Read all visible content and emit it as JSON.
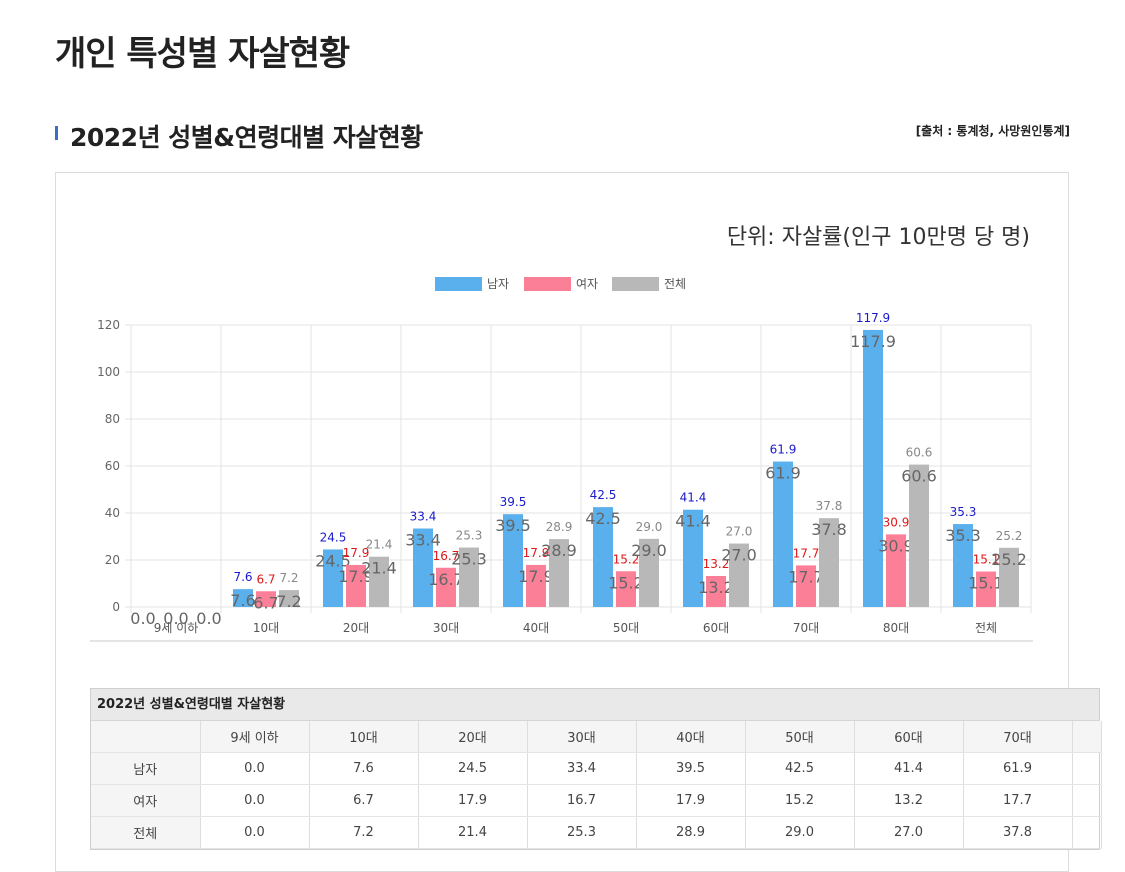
{
  "page": {
    "title": "개인 특성별 자살현황",
    "section_title": "2022년 성별&연령대별 자살현황",
    "source": "[출처 : 통계청, 사망원인통계]",
    "unit": "단위: 자살률(인구 10만명 당 명)"
  },
  "colors": {
    "male": "#5ab0ec",
    "female": "#fc7f98",
    "total": "#b8b8b9",
    "male_label": "#1a1acc",
    "female_label": "#e01818",
    "total_label": "#888888"
  },
  "chart_data": {
    "type": "bar",
    "categories": [
      "9세 이하",
      "10대",
      "20대",
      "30대",
      "40대",
      "50대",
      "60대",
      "70대",
      "80대",
      "전체"
    ],
    "series": [
      {
        "name": "남자",
        "values": [
          0.0,
          7.6,
          24.5,
          33.4,
          39.5,
          42.5,
          41.4,
          61.9,
          117.9,
          35.3
        ]
      },
      {
        "name": "여자",
        "values": [
          0.0,
          6.7,
          17.9,
          16.7,
          17.9,
          15.2,
          13.2,
          17.7,
          30.9,
          15.1
        ]
      },
      {
        "name": "전체",
        "values": [
          0.0,
          7.2,
          21.4,
          25.3,
          28.9,
          29.0,
          27.0,
          37.8,
          60.6,
          25.2
        ]
      }
    ],
    "ylim": [
      0,
      120
    ],
    "yticks": [
      "0",
      "20",
      "40",
      "60",
      "80",
      "100",
      "120"
    ],
    "title": "",
    "xlabel": "",
    "ylabel": "",
    "grid": true,
    "legend": "top-center"
  },
  "table": {
    "caption": "2022년 성별&연령대별 자살현황",
    "headers": [
      "",
      "9세 이하",
      "10대",
      "20대",
      "30대",
      "40대",
      "50대",
      "60대",
      "70대",
      ""
    ],
    "rows": [
      {
        "label": "남자",
        "cells": [
          "0.0",
          "7.6",
          "24.5",
          "33.4",
          "39.5",
          "42.5",
          "41.4",
          "61.9",
          ""
        ]
      },
      {
        "label": "여자",
        "cells": [
          "0.0",
          "6.7",
          "17.9",
          "16.7",
          "17.9",
          "15.2",
          "13.2",
          "17.7",
          ""
        ]
      },
      {
        "label": "전체",
        "cells": [
          "0.0",
          "7.2",
          "21.4",
          "25.3",
          "28.9",
          "29.0",
          "27.0",
          "37.8",
          ""
        ]
      }
    ]
  }
}
